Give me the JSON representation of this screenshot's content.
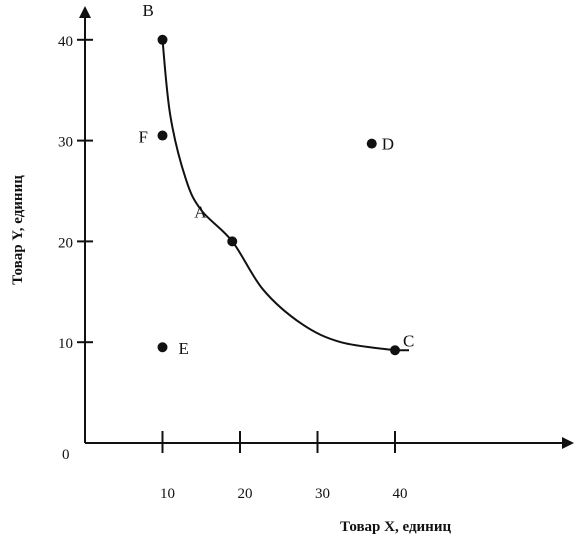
{
  "chart_data": {
    "type": "scatter",
    "title": "",
    "xlabel": "Товар X, единиц",
    "ylabel": "Товар Y, единиц",
    "origin_label": "0",
    "x_ticks": [
      {
        "value": 10,
        "label": "10"
      },
      {
        "value": 20,
        "label": "20"
      },
      {
        "value": 30,
        "label": "30"
      },
      {
        "value": 40,
        "label": "40"
      }
    ],
    "y_ticks": [
      {
        "value": 10,
        "label": "10"
      },
      {
        "value": 20,
        "label": "20"
      },
      {
        "value": 30,
        "label": "30"
      },
      {
        "value": 40,
        "label": "40"
      }
    ],
    "points": [
      {
        "label": "B",
        "x": 10,
        "y": 40
      },
      {
        "label": "F",
        "x": 10,
        "y": 30.5
      },
      {
        "label": "A",
        "x": 19,
        "y": 20
      },
      {
        "label": "C",
        "x": 40,
        "y": 9.2
      },
      {
        "label": "D",
        "x": 37,
        "y": 29.7
      },
      {
        "label": "E",
        "x": 10,
        "y": 9.5
      }
    ],
    "curve": {
      "through": [
        "B",
        "A",
        "C"
      ],
      "points": [
        [
          10,
          40
        ],
        [
          11,
          32.5
        ],
        [
          13,
          26.2
        ],
        [
          15,
          23.1
        ],
        [
          19,
          20
        ],
        [
          23,
          15.2
        ],
        [
          28,
          11.8
        ],
        [
          33,
          10
        ],
        [
          40,
          9.2
        ]
      ]
    },
    "grid": false,
    "legend": "none",
    "colors": {
      "ink": "#111111",
      "background": "#ffffff"
    }
  }
}
